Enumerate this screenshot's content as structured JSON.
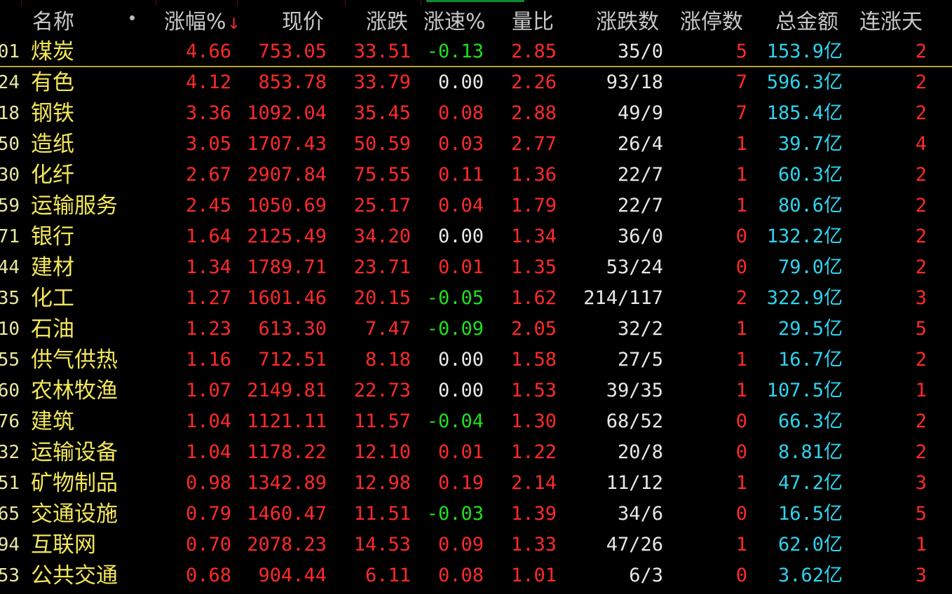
{
  "header": {
    "name": "名称",
    "pct": "涨幅%",
    "sort_arrow": "↓",
    "price": "现价",
    "change": "涨跌",
    "speed": "涨速%",
    "vol_ratio": "量比",
    "up_down": "涨跌数",
    "limit_up": "涨停数",
    "amount": "总金额",
    "streak": "连涨天"
  },
  "colors": {
    "up": "#ff2a2a",
    "down": "#1ee01e",
    "flat": "#e8e8e8",
    "name": "#f2e65a",
    "amount": "#2fd3ee",
    "selected_line": "#b8a23a"
  },
  "rows": [
    {
      "code": "01",
      "name": "煤炭",
      "pct": "4.66",
      "price": "753.05",
      "change": "33.51",
      "speed": "-0.13",
      "ratio": "2.85",
      "ud": "35/0",
      "lim": "5",
      "amt": "153.9亿",
      "days": "2"
    },
    {
      "code": "24",
      "name": "有色",
      "pct": "4.12",
      "price": "853.78",
      "change": "33.79",
      "speed": "0.00",
      "ratio": "2.26",
      "ud": "93/18",
      "lim": "7",
      "amt": "596.3亿",
      "days": "2"
    },
    {
      "code": "18",
      "name": "钢铁",
      "pct": "3.36",
      "price": "1092.04",
      "change": "35.45",
      "speed": "0.08",
      "ratio": "2.88",
      "ud": "49/9",
      "lim": "7",
      "amt": "185.4亿",
      "days": "2"
    },
    {
      "code": "50",
      "name": "造纸",
      "pct": "3.05",
      "price": "1707.43",
      "change": "50.59",
      "speed": "0.03",
      "ratio": "2.77",
      "ud": "26/4",
      "lim": "1",
      "amt": "39.7亿",
      "days": "4"
    },
    {
      "code": "30",
      "name": "化纤",
      "pct": "2.67",
      "price": "2907.84",
      "change": "75.55",
      "speed": "0.11",
      "ratio": "1.36",
      "ud": "22/7",
      "lim": "1",
      "amt": "60.3亿",
      "days": "2"
    },
    {
      "code": "59",
      "name": "运输服务",
      "pct": "2.45",
      "price": "1050.69",
      "change": "25.17",
      "speed": "0.04",
      "ratio": "1.79",
      "ud": "22/7",
      "lim": "1",
      "amt": "80.6亿",
      "days": "2"
    },
    {
      "code": "71",
      "name": "银行",
      "pct": "1.64",
      "price": "2125.49",
      "change": "34.20",
      "speed": "0.00",
      "ratio": "1.34",
      "ud": "36/0",
      "lim": "0",
      "amt": "132.2亿",
      "days": "2"
    },
    {
      "code": "44",
      "name": "建材",
      "pct": "1.34",
      "price": "1789.71",
      "change": "23.71",
      "speed": "0.01",
      "ratio": "1.35",
      "ud": "53/24",
      "lim": "0",
      "amt": "79.0亿",
      "days": "2"
    },
    {
      "code": "35",
      "name": "化工",
      "pct": "1.27",
      "price": "1601.46",
      "change": "20.15",
      "speed": "-0.05",
      "ratio": "1.62",
      "ud": "214/117",
      "lim": "2",
      "amt": "322.9亿",
      "days": "3"
    },
    {
      "code": "10",
      "name": "石油",
      "pct": "1.23",
      "price": "613.30",
      "change": "7.47",
      "speed": "-0.09",
      "ratio": "2.05",
      "ud": "32/2",
      "lim": "1",
      "amt": "29.5亿",
      "days": "5"
    },
    {
      "code": "55",
      "name": "供气供热",
      "pct": "1.16",
      "price": "712.51",
      "change": "8.18",
      "speed": "0.00",
      "ratio": "1.58",
      "ud": "27/5",
      "lim": "1",
      "amt": "16.7亿",
      "days": "2"
    },
    {
      "code": "60",
      "name": "农林牧渔",
      "pct": "1.07",
      "price": "2149.81",
      "change": "22.73",
      "speed": "0.00",
      "ratio": "1.53",
      "ud": "39/35",
      "lim": "1",
      "amt": "107.5亿",
      "days": "1"
    },
    {
      "code": "76",
      "name": "建筑",
      "pct": "1.04",
      "price": "1121.11",
      "change": "11.57",
      "speed": "-0.04",
      "ratio": "1.30",
      "ud": "68/52",
      "lim": "0",
      "amt": "66.3亿",
      "days": "2"
    },
    {
      "code": "32",
      "name": "运输设备",
      "pct": "1.04",
      "price": "1178.22",
      "change": "12.10",
      "speed": "0.01",
      "ratio": "1.22",
      "ud": "20/8",
      "lim": "0",
      "amt": "8.81亿",
      "days": "2"
    },
    {
      "code": "51",
      "name": "矿物制品",
      "pct": "0.98",
      "price": "1342.89",
      "change": "12.98",
      "speed": "0.19",
      "ratio": "2.14",
      "ud": "11/12",
      "lim": "1",
      "amt": "47.2亿",
      "days": "3"
    },
    {
      "code": "65",
      "name": "交通设施",
      "pct": "0.79",
      "price": "1460.47",
      "change": "11.51",
      "speed": "-0.03",
      "ratio": "1.39",
      "ud": "34/6",
      "lim": "0",
      "amt": "16.5亿",
      "days": "5"
    },
    {
      "code": "94",
      "name": "互联网",
      "pct": "0.70",
      "price": "2078.23",
      "change": "14.53",
      "speed": "0.09",
      "ratio": "1.33",
      "ud": "47/26",
      "lim": "1",
      "amt": "62.0亿",
      "days": "1"
    },
    {
      "code": "53",
      "name": "公共交通",
      "pct": "0.68",
      "price": "904.44",
      "change": "6.11",
      "speed": "0.08",
      "ratio": "1.01",
      "ud": "6/3",
      "lim": "0",
      "amt": "3.62亿",
      "days": "3"
    }
  ]
}
